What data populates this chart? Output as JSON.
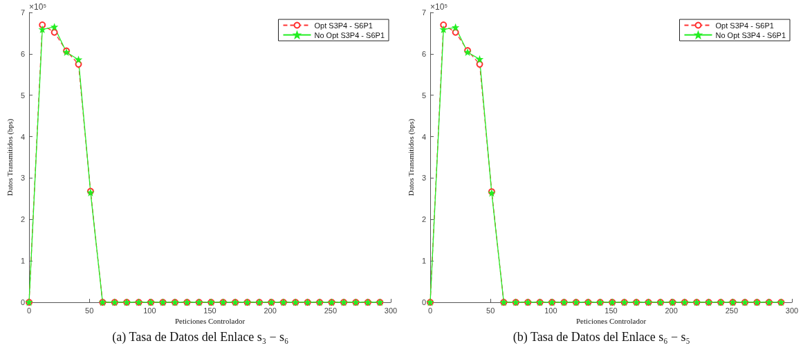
{
  "chart_data": [
    {
      "type": "line",
      "title": "(a) Tasa de Datos del Enlace s₃ − s₆",
      "xlabel": "Peticiones Controlador",
      "ylabel": "Datos Transmitidos (bps)",
      "annotations": [
        "×10⁵"
      ],
      "x": [
        0,
        11,
        21,
        31,
        41,
        51,
        61,
        71,
        81,
        91,
        101,
        111,
        121,
        131,
        141,
        151,
        161,
        171,
        181,
        191,
        201,
        211,
        221,
        231,
        241,
        251,
        261,
        271,
        281,
        291
      ],
      "series": [
        {
          "name": "Opt S3P4 - S6P1",
          "color": "#ff3030",
          "marker": "circle",
          "line_style": "dashed",
          "values": [
            0,
            6.7,
            6.52,
            6.07,
            5.75,
            2.68,
            0,
            0,
            0,
            0,
            0,
            0,
            0,
            0,
            0,
            0,
            0,
            0,
            0,
            0,
            0,
            0,
            0,
            0,
            0,
            0,
            0,
            0,
            0,
            0
          ]
        },
        {
          "name": "No Opt S3P4 - S6P1",
          "color": "#22ee22",
          "marker": "star",
          "line_style": "solid",
          "values": [
            0,
            6.59,
            6.65,
            6.04,
            5.86,
            2.65,
            0,
            0,
            0,
            0,
            0,
            0,
            0,
            0,
            0,
            0,
            0,
            0,
            0,
            0,
            0,
            0,
            0,
            0,
            0,
            0,
            0,
            0,
            0,
            0
          ]
        }
      ],
      "xlim": [
        0,
        300
      ],
      "xticks": [
        0,
        50,
        100,
        150,
        200,
        250,
        300
      ],
      "ylim": [
        0,
        7
      ],
      "yticks": [
        0,
        1,
        2,
        3,
        4,
        5,
        6,
        7
      ],
      "grid": false,
      "legend": "top right"
    },
    {
      "type": "line",
      "title": "(b) Tasa de Datos del Enlace s₆ − s₅",
      "xlabel": "Peticiones Controlador",
      "ylabel": "Datos Transmitidos (bps)",
      "annotations": [
        "×10⁵"
      ],
      "x": [
        0,
        11,
        21,
        31,
        41,
        51,
        61,
        71,
        81,
        91,
        101,
        111,
        121,
        131,
        141,
        151,
        161,
        171,
        181,
        191,
        201,
        211,
        221,
        231,
        241,
        251,
        261,
        271,
        281,
        291
      ],
      "series": [
        {
          "name": "Opt S3P4 - S6P1",
          "color": "#ff3030",
          "marker": "circle",
          "line_style": "dashed",
          "values": [
            0,
            6.7,
            6.52,
            6.08,
            5.75,
            2.67,
            0,
            0,
            0,
            0,
            0,
            0,
            0,
            0,
            0,
            0,
            0,
            0,
            0,
            0,
            0,
            0,
            0,
            0,
            0,
            0,
            0,
            0,
            0,
            0
          ]
        },
        {
          "name": "No Opt S3P4 - S6P1",
          "color": "#22ee22",
          "marker": "star",
          "line_style": "solid",
          "values": [
            0,
            6.59,
            6.64,
            6.04,
            5.87,
            2.64,
            0,
            0,
            0,
            0,
            0,
            0,
            0,
            0,
            0,
            0,
            0,
            0,
            0,
            0,
            0,
            0,
            0,
            0,
            0,
            0,
            0,
            0,
            0,
            0
          ]
        }
      ],
      "xlim": [
        0,
        300
      ],
      "xticks": [
        0,
        50,
        100,
        150,
        200,
        250,
        300
      ],
      "ylim": [
        0,
        7
      ],
      "yticks": [
        0,
        1,
        2,
        3,
        4,
        5,
        6,
        7
      ],
      "grid": false,
      "legend": "top right"
    }
  ]
}
